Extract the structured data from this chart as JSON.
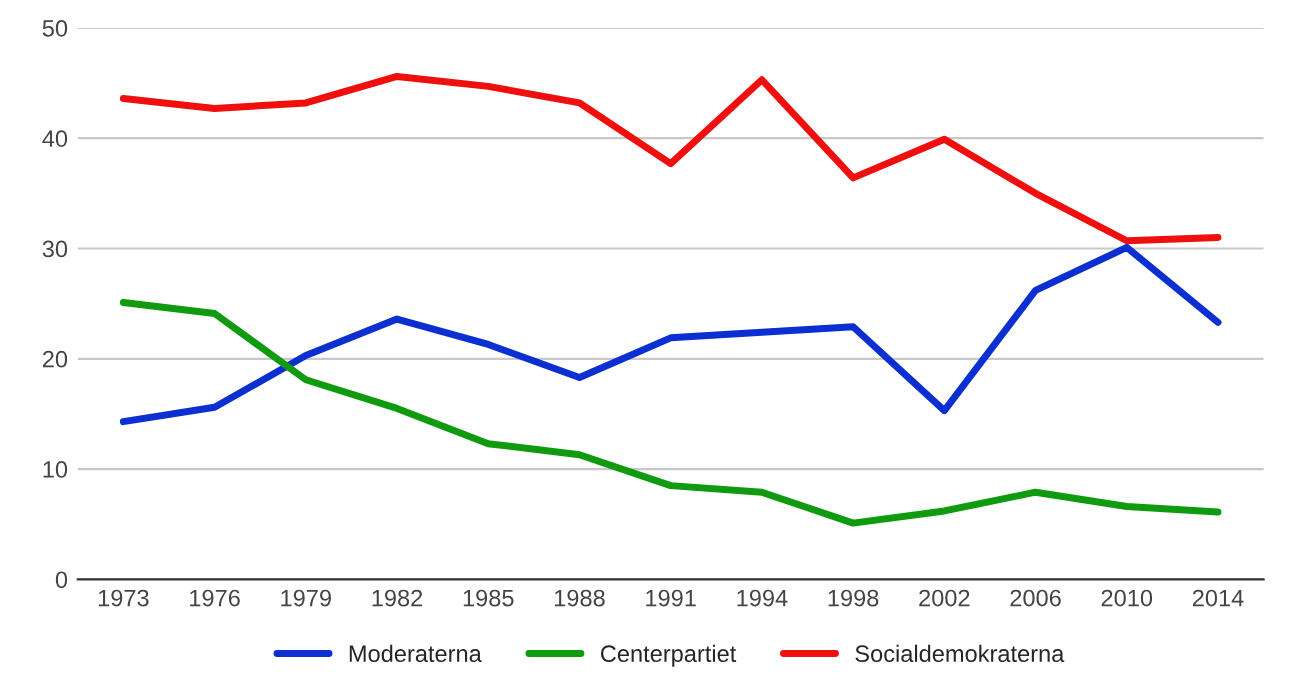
{
  "chart_data": {
    "type": "line",
    "categories": [
      "1973",
      "1976",
      "1979",
      "1982",
      "1985",
      "1988",
      "1991",
      "1994",
      "1998",
      "2002",
      "2006",
      "2010",
      "2014"
    ],
    "series": [
      {
        "name": "Moderaterna",
        "color": "#0b2fd0",
        "values": [
          14.3,
          15.6,
          20.3,
          23.6,
          21.3,
          18.3,
          21.9,
          22.4,
          22.9,
          15.3,
          26.2,
          30.1,
          23.3
        ]
      },
      {
        "name": "Centerpartiet",
        "color": "#0f9a0f",
        "values": [
          25.1,
          24.1,
          18.1,
          15.5,
          12.3,
          11.3,
          8.5,
          7.9,
          5.1,
          6.2,
          7.9,
          6.6,
          6.1
        ]
      },
      {
        "name": "Socialdemokraterna",
        "color": "#f00f0f",
        "values": [
          43.6,
          42.7,
          43.2,
          45.6,
          44.7,
          43.2,
          37.7,
          45.3,
          36.4,
          39.9,
          35.0,
          30.7,
          31.0
        ]
      }
    ],
    "ylim": [
      0,
      50
    ],
    "yticks": [
      0,
      10,
      20,
      30,
      40,
      50
    ],
    "grid": "y",
    "legend": "bottom",
    "marker": "none",
    "line_style": "solid"
  }
}
